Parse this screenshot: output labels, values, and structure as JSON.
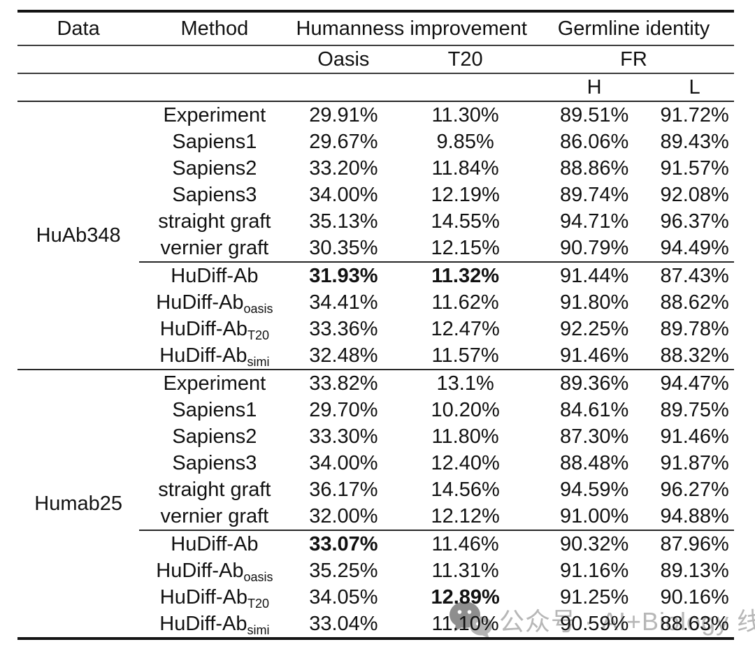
{
  "table": {
    "header": {
      "col_data": "Data",
      "col_method": "Method",
      "group_humanness": "Humanness improvement",
      "group_germline": "Germline identity",
      "col_oasis": "Oasis",
      "col_t20": "T20",
      "col_fr": "FR",
      "col_h": "H",
      "col_l": "L"
    },
    "groups": [
      {
        "data": "HuAb348",
        "rows": [
          {
            "method": "Experiment",
            "oasis": "29.91%",
            "t20": "11.30%",
            "h": "89.51%",
            "l": "91.72%"
          },
          {
            "method": "Sapiens1",
            "oasis": "29.67%",
            "t20": "9.85%",
            "h": "86.06%",
            "l": "89.43%"
          },
          {
            "method": "Sapiens2",
            "oasis": "33.20%",
            "t20": "11.84%",
            "h": "88.86%",
            "l": "91.57%"
          },
          {
            "method": "Sapiens3",
            "oasis": "34.00%",
            "t20": "12.19%",
            "h": "89.74%",
            "l": "92.08%"
          },
          {
            "method": "straight graft",
            "oasis": "35.13%",
            "t20": "14.55%",
            "h": "94.71%",
            "l": "96.37%"
          },
          {
            "method": "vernier graft",
            "oasis": "30.35%",
            "t20": "12.15%",
            "h": "90.79%",
            "l": "94.49%"
          },
          {
            "method": "HuDiff-Ab",
            "rule_above": true,
            "bold": [
              "oasis",
              "t20"
            ],
            "oasis": "31.93%",
            "t20": "11.32%",
            "h": "91.44%",
            "l": "87.43%"
          },
          {
            "method": "HuDiff-Ab",
            "method_sub": "oasis",
            "oasis": "34.41%",
            "t20": "11.62%",
            "h": "91.80%",
            "l": "88.62%"
          },
          {
            "method": "HuDiff-Ab",
            "method_sub": "T20",
            "oasis": "33.36%",
            "t20": "12.47%",
            "h": "92.25%",
            "l": "89.78%"
          },
          {
            "method": "HuDiff-Ab",
            "method_sub": "simi",
            "oasis": "32.48%",
            "t20": "11.57%",
            "h": "91.46%",
            "l": "88.32%"
          }
        ]
      },
      {
        "data": "Humab25",
        "rows": [
          {
            "method": "Experiment",
            "oasis": "33.82%",
            "t20": "13.1%",
            "h": "89.36%",
            "l": "94.47%"
          },
          {
            "method": "Sapiens1",
            "oasis": "29.70%",
            "t20": "10.20%",
            "h": "84.61%",
            "l": "89.75%"
          },
          {
            "method": "Sapiens2",
            "oasis": "33.30%",
            "t20": "11.80%",
            "h": "87.30%",
            "l": "91.46%"
          },
          {
            "method": "Sapiens3",
            "oasis": "34.00%",
            "t20": "12.40%",
            "h": "88.48%",
            "l": "91.87%"
          },
          {
            "method": "straight graft",
            "oasis": "36.17%",
            "t20": "14.56%",
            "h": "94.59%",
            "l": "96.27%"
          },
          {
            "method": "vernier graft",
            "oasis": "32.00%",
            "t20": "12.12%",
            "h": "91.00%",
            "l": "94.88%"
          },
          {
            "method": "HuDiff-Ab",
            "rule_above": true,
            "bold": [
              "oasis"
            ],
            "oasis": "33.07%",
            "t20": "11.46%",
            "h": "90.32%",
            "l": "87.96%"
          },
          {
            "method": "HuDiff-Ab",
            "method_sub": "oasis",
            "oasis": "35.25%",
            "t20": "11.31%",
            "h": "91.16%",
            "l": "89.13%"
          },
          {
            "method": "HuDiff-Ab",
            "method_sub": "T20",
            "bold": [
              "t20"
            ],
            "oasis": "34.05%",
            "t20": "12.89%",
            "h": "91.25%",
            "l": "90.16%"
          },
          {
            "method": "HuDiff-Ab",
            "method_sub": "simi",
            "oasis": "33.04%",
            "t20": "11.10%",
            "h": "90.59%",
            "l": "88.63%"
          }
        ]
      }
    ]
  },
  "watermark": {
    "icon": "wechat-icon",
    "text": "公众号 · AI+Biology 线报",
    "text_color": "#b7b7b7",
    "icon_color": "#8e8e8e"
  },
  "style_colors": {
    "rule_thick": "#141414",
    "rule_thin": "#3a3a3a",
    "text": "#111111"
  }
}
